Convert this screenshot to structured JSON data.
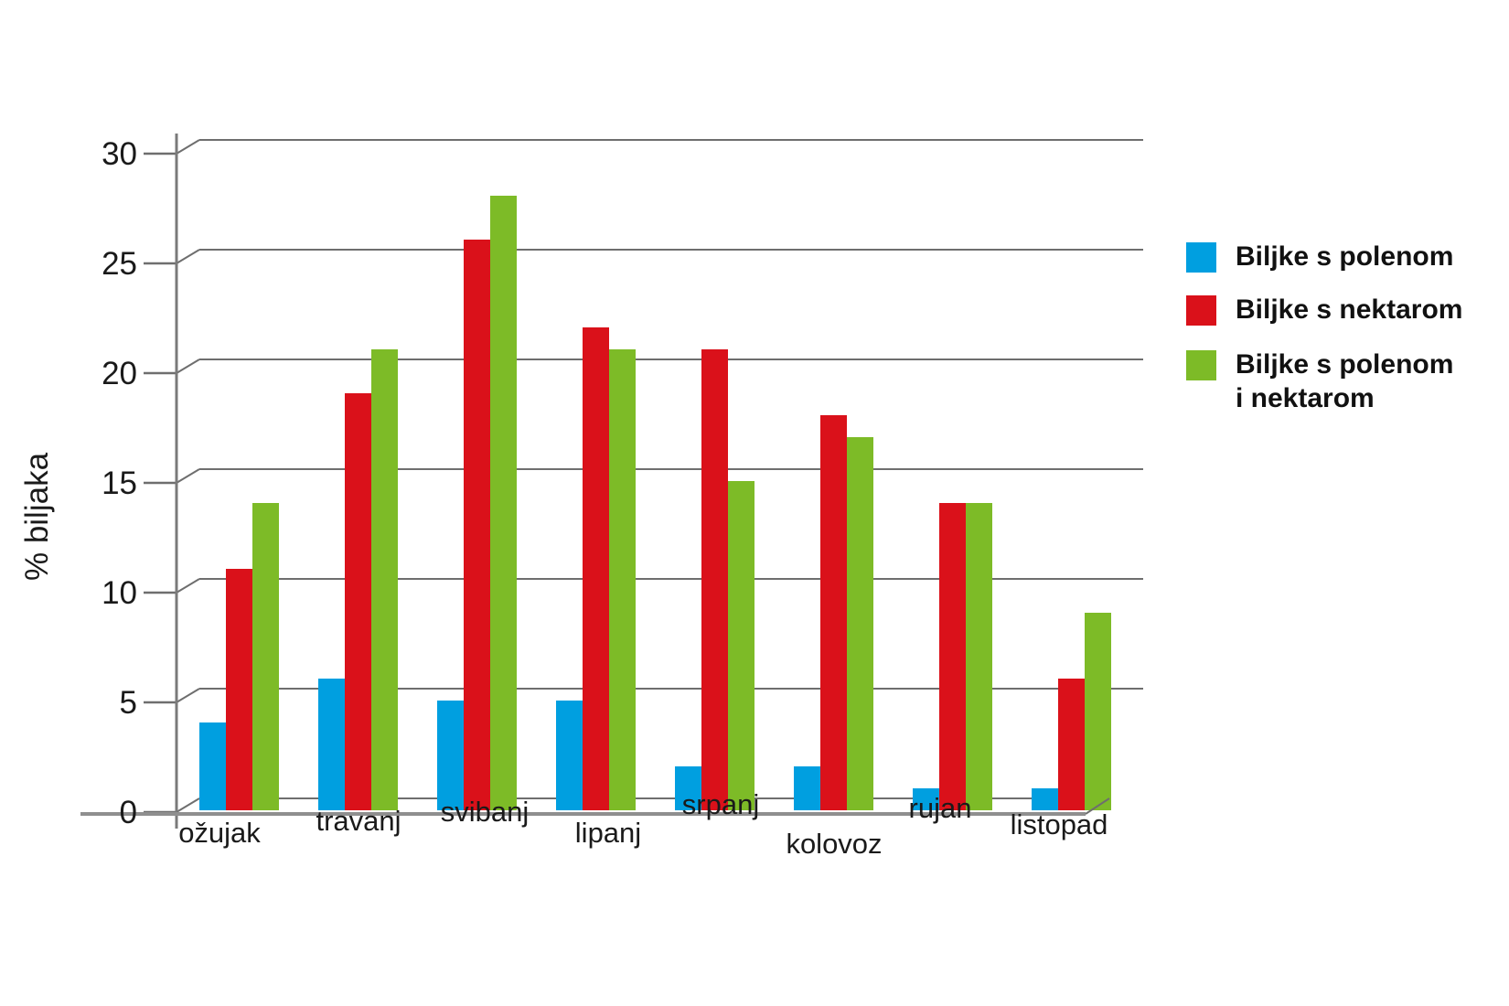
{
  "chart_data": {
    "type": "bar",
    "title": "",
    "ylabel": "% biljaka",
    "categories": [
      "ožujak",
      "travanj",
      "svibanj",
      "lipanj",
      "srpanj",
      "kolovoz",
      "rujan",
      "listopad"
    ],
    "series": [
      {
        "name": "Biljke s polenom",
        "color": "#009FE0",
        "values": [
          4,
          6,
          5,
          5,
          2,
          2,
          1,
          1
        ]
      },
      {
        "name": "Biljke s nektarom",
        "color": "#DA111A",
        "values": [
          11,
          19,
          26,
          22,
          21,
          18,
          14,
          6
        ]
      },
      {
        "name": "Biljke s polenom i nektarom",
        "color": "#7DBB27",
        "values": [
          14,
          21,
          28,
          21,
          15,
          17,
          14,
          9
        ]
      }
    ],
    "ylim": [
      0,
      30
    ],
    "yticks": [
      "0",
      "5",
      "10",
      "15",
      "20",
      "25",
      "30"
    ],
    "grid": "horizontal",
    "legend_position": "right",
    "legend_labels": [
      [
        "Biljke s polenom"
      ],
      [
        "Biljke s nektarom"
      ],
      [
        "Biljke s polenom",
        "i nektarom"
      ]
    ],
    "style_colors": {
      "gridline": "#6e6e6e",
      "axis": "#7a7a7a",
      "floor": "#8f8f8f",
      "text": "#1a1a1a"
    }
  }
}
